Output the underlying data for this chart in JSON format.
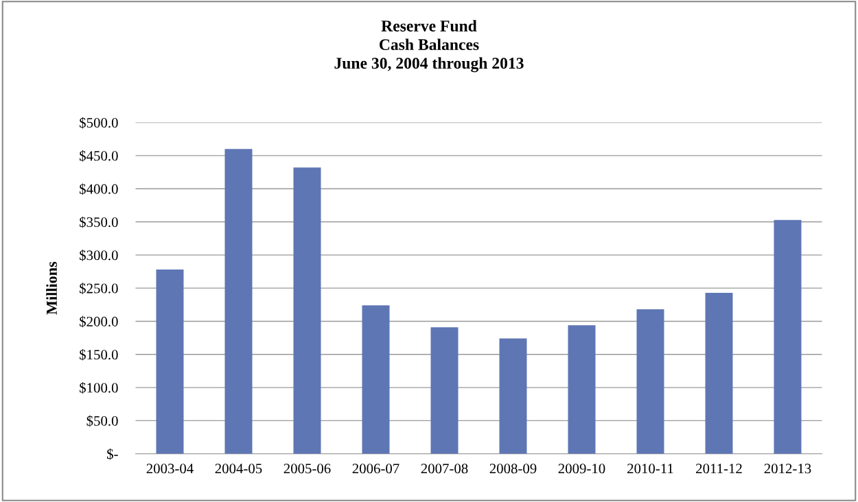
{
  "chart_data": {
    "type": "bar",
    "title": "Reserve Fund\nCash Balances\nJune 30, 2004 through 2013",
    "ylabel": "Millions",
    "categories": [
      "2003-04",
      "2004-05",
      "2005-06",
      "2006-07",
      "2007-08",
      "2008-09",
      "2009-10",
      "2010-11",
      "2011-12",
      "2012-13"
    ],
    "values": [
      278,
      460,
      432,
      224,
      191,
      174,
      194,
      218,
      243,
      353
    ],
    "color": "#5e76b4",
    "ylim": [
      0,
      500
    ],
    "yticks": [
      {
        "value": 0,
        "label": "$-"
      },
      {
        "value": 50,
        "label": "$50.0"
      },
      {
        "value": 100,
        "label": "$100.0"
      },
      {
        "value": 150,
        "label": "$150.0"
      },
      {
        "value": 200,
        "label": "$200.0"
      },
      {
        "value": 250,
        "label": "$250.0"
      },
      {
        "value": 300,
        "label": "$300.0"
      },
      {
        "value": 350,
        "label": "$350.0"
      },
      {
        "value": 400,
        "label": "$400.0"
      },
      {
        "value": 450,
        "label": "$450.0"
      },
      {
        "value": 500,
        "label": "$500.0"
      }
    ],
    "grid": "y"
  }
}
